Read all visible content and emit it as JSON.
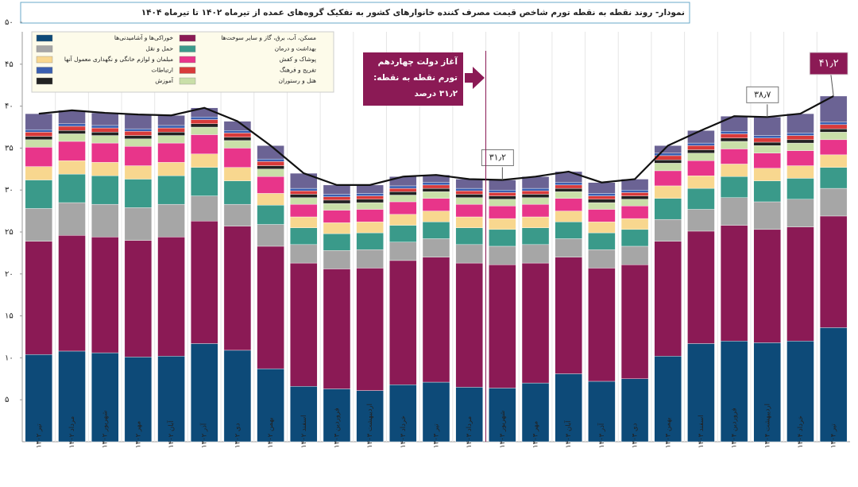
{
  "chart_data": {
    "type": "stacked_bar",
    "title": "نمودار- روند نقطه به نقطه تورم شاخص قیمت مصرف کننده خانوارهای کشور به تفکیک گروه‌های عمده از تیرماه ۱۴۰۲ تا تیرماه ۱۴۰۴",
    "categories": [
      "تیر ۱۴۰۲",
      "مرداد ۱۴۰۲",
      "شهریور ۱۴۰۲",
      "مهر ۱۴۰۲",
      "آبان ۱۴۰۲",
      "آذر ۱۴۰۲",
      "دی ۱۴۰۲",
      "بهمن ۱۴۰۲",
      "اسفند ۱۴۰۲",
      "فروردین ۱۴۰۳",
      "اردیبهشت ۱۴۰۳",
      "خرداد ۱۴۰۳",
      "تیر ۱۴۰۳",
      "مرداد ۱۴۰۳",
      "شهریور ۱۴۰۳",
      "مهر ۱۴۰۳",
      "آبان ۱۴۰۳",
      "آذر ۱۴۰۳",
      "دی ۱۴۰۳",
      "بهمن ۱۴۰۳",
      "اسفند ۱۴۰۳",
      "فروردین ۱۴۰۴",
      "اردیبهشت ۱۴۰۴",
      "خرداد ۱۴۰۴",
      "تیر ۱۴۰۴"
    ],
    "series": [
      {
        "name": "خوراکی‌ها و آشامیدنی‌ها",
        "color": "#0d4a78",
        "values": [
          10.4,
          10.8,
          10.6,
          10.1,
          10.2,
          11.7,
          10.9,
          8.7,
          6.6,
          6.3,
          6.1,
          6.8,
          7.1,
          6.5,
          6.4,
          7.0,
          8.1,
          7.2,
          7.5,
          10.2,
          11.7,
          12.0,
          11.8,
          12.0,
          13.6
        ]
      },
      {
        "name": "مسکن، آب، برق، گاز و سایر سوخت‌ها",
        "color": "#8b1a55",
        "values": [
          13.5,
          13.8,
          13.8,
          13.9,
          14.2,
          14.6,
          14.8,
          14.6,
          14.7,
          14.3,
          14.6,
          14.8,
          14.9,
          14.8,
          14.7,
          14.3,
          13.9,
          13.5,
          13.6,
          13.7,
          13.4,
          13.8,
          13.5,
          13.6,
          13.3
        ]
      },
      {
        "name": "حمل و نقل",
        "color": "#a6a6a6",
        "values": [
          3.9,
          3.9,
          3.9,
          3.9,
          3.9,
          3.0,
          2.6,
          2.6,
          2.2,
          2.2,
          2.2,
          2.2,
          2.2,
          2.2,
          2.2,
          2.2,
          2.2,
          2.2,
          2.2,
          2.6,
          2.6,
          3.3,
          3.3,
          3.3,
          3.3
        ]
      },
      {
        "name": "بهداشت و درمان",
        "color": "#3a9a8a",
        "values": [
          3.4,
          3.4,
          3.4,
          3.4,
          3.4,
          3.4,
          2.8,
          2.3,
          2.0,
          2.0,
          2.0,
          2.0,
          2.0,
          2.0,
          2.0,
          2.0,
          2.0,
          2.0,
          2.0,
          2.5,
          2.5,
          2.5,
          2.5,
          2.5,
          2.5
        ]
      },
      {
        "name": "مبلمان و لوازم خانگی و نگهداری معمول آنها",
        "color": "#f8d78f",
        "values": [
          1.6,
          1.6,
          1.6,
          1.6,
          1.6,
          1.6,
          1.6,
          1.4,
          1.3,
          1.3,
          1.3,
          1.3,
          1.3,
          1.3,
          1.3,
          1.3,
          1.3,
          1.3,
          1.3,
          1.5,
          1.5,
          1.5,
          1.5,
          1.5,
          1.5
        ]
      },
      {
        "name": "پوشاک و کفش",
        "color": "#e8358a",
        "values": [
          2.3,
          2.3,
          2.3,
          2.3,
          2.3,
          2.3,
          2.3,
          2.0,
          1.5,
          1.5,
          1.5,
          1.5,
          1.5,
          1.5,
          1.5,
          1.5,
          1.5,
          1.5,
          1.5,
          1.8,
          1.8,
          1.8,
          1.8,
          1.8,
          1.8
        ]
      },
      {
        "name": "هتل و رستوران",
        "color": "#c9dfa8",
        "values": [
          0.9,
          0.9,
          0.9,
          0.9,
          0.9,
          0.9,
          0.9,
          0.9,
          0.8,
          0.8,
          0.8,
          0.8,
          0.8,
          0.8,
          0.8,
          0.8,
          0.8,
          0.8,
          0.8,
          0.9,
          0.9,
          0.9,
          0.9,
          0.9,
          0.9
        ]
      },
      {
        "name": "آموزش",
        "color": "#222222",
        "values": [
          0.4,
          0.4,
          0.4,
          0.4,
          0.4,
          0.4,
          0.4,
          0.4,
          0.4,
          0.4,
          0.4,
          0.4,
          0.4,
          0.4,
          0.4,
          0.4,
          0.4,
          0.4,
          0.4,
          0.4,
          0.4,
          0.4,
          0.4,
          0.4,
          0.4
        ]
      },
      {
        "name": "تفریح و فرهنگ",
        "color": "#d83a3a",
        "values": [
          0.5,
          0.5,
          0.5,
          0.5,
          0.5,
          0.5,
          0.5,
          0.5,
          0.4,
          0.4,
          0.4,
          0.4,
          0.4,
          0.4,
          0.4,
          0.4,
          0.4,
          0.4,
          0.4,
          0.5,
          0.5,
          0.5,
          0.5,
          0.5,
          0.5
        ]
      },
      {
        "name": "ارتباطات",
        "color": "#3a5fb0",
        "values": [
          0.3,
          0.3,
          0.3,
          0.3,
          0.3,
          0.3,
          0.3,
          0.3,
          0.3,
          0.3,
          0.3,
          0.3,
          0.3,
          0.3,
          0.3,
          0.3,
          0.3,
          0.3,
          0.3,
          0.3,
          0.3,
          0.3,
          0.3,
          0.3,
          0.3
        ]
      },
      {
        "color": "#6b6394",
        "values": [
          1.9,
          1.6,
          1.5,
          1.7,
          1.2,
          1.1,
          1.1,
          1.6,
          1.8,
          1.1,
          1.0,
          1.1,
          0.9,
          1.1,
          1.2,
          1.4,
          1.3,
          1.3,
          1.3,
          0.9,
          1.5,
          1.8,
          2.2,
          2.3,
          3.1
        ]
      }
    ],
    "total": {
      "color": "#111111",
      "values": [
        39.1,
        39.5,
        39.2,
        39.0,
        38.9,
        39.8,
        38.2,
        35.3,
        32.0,
        30.6,
        30.6,
        31.6,
        31.8,
        31.3,
        31.2,
        31.6,
        32.2,
        30.9,
        31.3,
        35.3,
        37.1,
        38.8,
        38.7,
        39.1,
        41.2
      ],
      "value_labels": [
        null,
        null,
        null,
        null,
        null,
        null,
        null,
        null,
        null,
        null,
        null,
        null,
        null,
        null,
        "۳۱٫۲",
        null,
        null,
        null,
        null,
        null,
        null,
        null,
        "۳۸٫۷",
        null,
        "۴۱٫۲"
      ]
    },
    "annotation": [
      "آغاز دولت چهاردهم",
      "تورم نقطه به نقطه:",
      "۳۱٫۲ درصد"
    ],
    "ylim": [
      0,
      50
    ],
    "yticks": [
      {
        "value": 5,
        "label": "۵"
      },
      {
        "value": 10,
        "label": "۱۰"
      },
      {
        "value": 15,
        "label": "۱۵"
      },
      {
        "value": 20,
        "label": "۲۰"
      },
      {
        "value": 25,
        "label": "۲۵"
      },
      {
        "value": 30,
        "label": "۳۰"
      },
      {
        "value": 35,
        "label": "۳۵"
      },
      {
        "value": 40,
        "label": "۴۰"
      },
      {
        "value": 45,
        "label": "۴۵"
      },
      {
        "value": 50,
        "label": "۵۰"
      }
    ]
  }
}
